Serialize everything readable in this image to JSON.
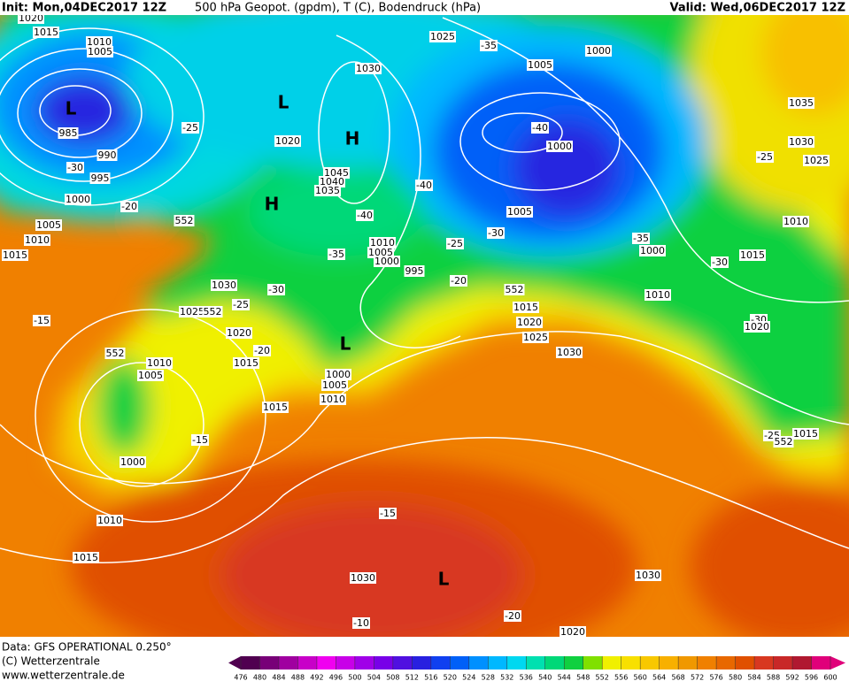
{
  "header": {
    "left": "Init: Mon,04DEC2017 12Z",
    "center": "500 hPa Geopot. (gpdm), T (C), Bodendruck (hPa)",
    "right": "Valid: Wed,06DEC2017 12Z"
  },
  "footer": {
    "source": "Data: GFS OPERATIONAL 0.250°",
    "copyright": "(C) Wetterzentrale",
    "url": "www.wetterzentrale.de"
  },
  "colorbar": {
    "ticks": [
      476,
      480,
      484,
      488,
      492,
      496,
      500,
      504,
      508,
      512,
      516,
      520,
      524,
      528,
      532,
      536,
      540,
      544,
      548,
      552,
      556,
      560,
      564,
      568,
      572,
      576,
      580,
      584,
      588,
      592,
      596,
      600
    ],
    "colors": [
      "#500050",
      "#780078",
      "#a000a0",
      "#c800c8",
      "#f000f0",
      "#c800e8",
      "#a000e8",
      "#7800e8",
      "#5010e0",
      "#2820e0",
      "#1040f0",
      "#0060f8",
      "#0090ff",
      "#00b8ff",
      "#00d8f0",
      "#00e0b0",
      "#00d878",
      "#10d040",
      "#80e000",
      "#f0f000",
      "#f8e000",
      "#f8c800",
      "#f8b000",
      "#f09800",
      "#f08000",
      "#e86800",
      "#e05000",
      "#d83820",
      "#c82828",
      "#b01830",
      "#e0007a"
    ]
  },
  "map_labels": [
    "1020",
    "1015",
    "1010",
    "1005",
    "L",
    "985",
    "990",
    "-30",
    "995",
    "1000",
    "-20",
    "1005",
    "1010",
    "1015",
    "552",
    "-25",
    "L",
    "1030",
    "1020",
    "H",
    "H",
    "1045",
    "1040",
    "1035",
    "-40",
    "-35",
    "1010",
    "1005",
    "1000",
    "995",
    "-30",
    "1030",
    "-25",
    "1025",
    "552",
    "1020",
    "-20",
    "1015",
    "L",
    "1000",
    "1005",
    "1010",
    "1015",
    "552",
    "1010",
    "1005",
    "1000",
    "-15",
    "-15",
    "1010",
    "1015",
    "-15",
    "1030",
    "L",
    "-10",
    "-20",
    "1020",
    "1030",
    "1025",
    "-35",
    "1005",
    "1000",
    "-40",
    "1000",
    "-40",
    "1005",
    "-30",
    "-25",
    "-20",
    "552",
    "1015",
    "1020",
    "1025",
    "1030",
    "1010",
    "-35",
    "1000",
    "-30",
    "1015",
    "1010",
    "-25",
    "1030",
    "1025",
    "1035",
    "-30",
    "1020",
    "-25",
    "1015",
    "552"
  ]
}
